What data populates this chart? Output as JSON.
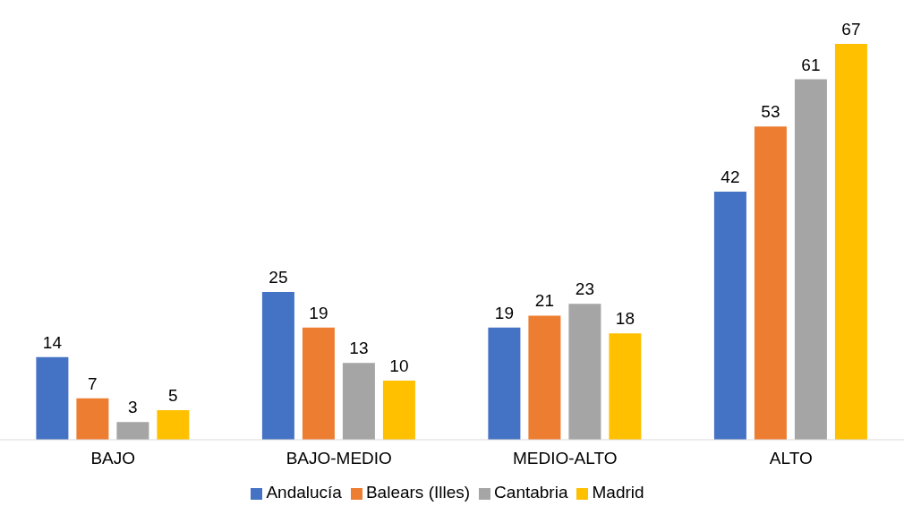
{
  "chart_data": {
    "type": "bar",
    "categories": [
      "BAJO",
      "BAJO-MEDIO",
      "MEDIO-ALTO",
      "ALTO"
    ],
    "series": [
      {
        "name": "Andalucía",
        "color": "#4472c4",
        "values": [
          14,
          25,
          19,
          42
        ]
      },
      {
        "name": "Balears (Illes)",
        "color": "#ed7d31",
        "values": [
          7,
          19,
          21,
          53
        ]
      },
      {
        "name": "Cantabria",
        "color": "#a5a5a5",
        "values": [
          3,
          13,
          23,
          61
        ]
      },
      {
        "name": "Madrid",
        "color": "#ffc000",
        "values": [
          5,
          10,
          18,
          67
        ]
      }
    ],
    "data_labels": true,
    "grid": false,
    "legend": "bottom"
  }
}
